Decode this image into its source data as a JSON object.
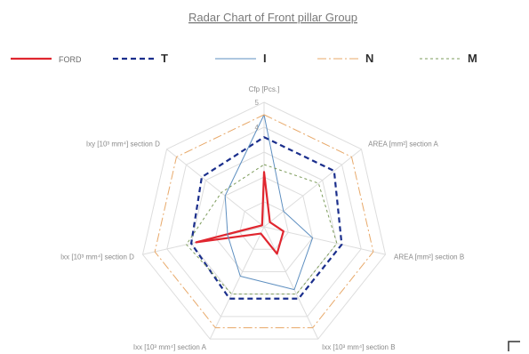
{
  "chart_data": {
    "type": "radar",
    "title": "Radar Chart of Front pillar Group",
    "axes": [
      "Cfp [Pcs.]",
      "AREA [mm²] section A",
      "AREA [mm²] section B",
      "Ixx [10³ mm⁴] section B",
      "Ixx [10³ mm⁴] section A",
      "Ixx [10³ mm⁴] section D",
      "Ixy [10³ mm⁴] section D"
    ],
    "rlim": [
      0,
      5
    ],
    "ticks": [
      "",
      "",
      "",
      "4",
      "5"
    ],
    "grid": true,
    "legend_position": "top",
    "series": [
      {
        "name": "FORD",
        "color": "#e0262f",
        "dash": "",
        "width": 2.2,
        "values": [
          2.2,
          0.3,
          0.8,
          1.2,
          0.3,
          2.8,
          0.1
        ]
      },
      {
        "name": "T",
        "color": "#1a2e8c",
        "dash": "6,4",
        "width": 2.2,
        "values": [
          3.6,
          3.6,
          3.2,
          3.2,
          3.2,
          3.0,
          3.2
        ]
      },
      {
        "name": "I",
        "color": "#5e8fc0",
        "dash": "",
        "width": 1,
        "values": [
          4.5,
          1.0,
          2.0,
          2.8,
          2.2,
          1.5,
          2.0
        ]
      },
      {
        "name": "N",
        "color": "#e8a96a",
        "dash": "10,3,2,3",
        "width": 1,
        "values": [
          4.5,
          4.5,
          4.5,
          4.5,
          4.5,
          4.5,
          4.5
        ]
      },
      {
        "name": "M",
        "color": "#7d9c5c",
        "dash": "3,3",
        "width": 1,
        "values": [
          2.5,
          2.8,
          3.0,
          3.0,
          3.0,
          3.2,
          2.2
        ]
      }
    ]
  }
}
